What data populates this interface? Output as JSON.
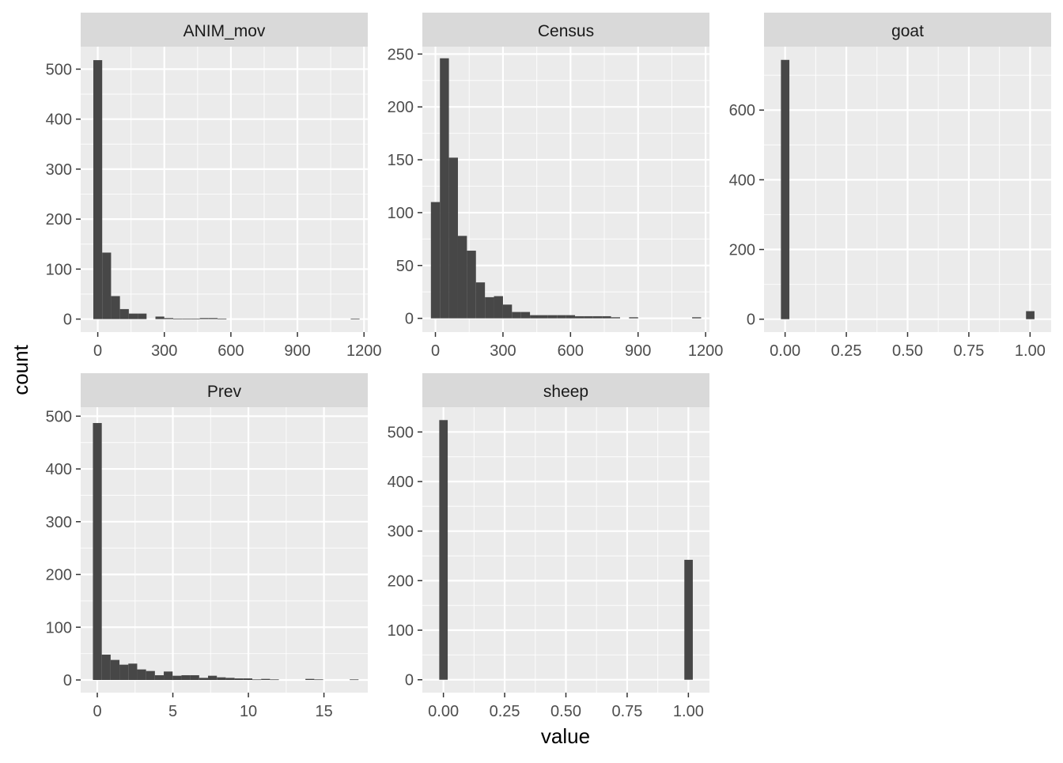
{
  "chart_data": {
    "type": "bar",
    "subtype": "faceted-histogram",
    "xlabel": "value",
    "ylabel": "count",
    "grid": true,
    "bar_color": "#474747",
    "panel_background": "#ebebeb",
    "strip_background": "#d9d9d9",
    "gridline_color": "#ffffff",
    "text_color": "#4d4d4d",
    "panels": [
      {
        "name": "ANIM_mov",
        "xlim": [
          -77,
          1217
        ],
        "ylim": [
          -26,
          545
        ],
        "xticks": [
          0,
          300,
          600,
          900,
          1200
        ],
        "xtick_labels": [
          "0",
          "300",
          "600",
          "900",
          "1200"
        ],
        "yticks": [
          0,
          100,
          200,
          300,
          400,
          500
        ],
        "ytick_labels": [
          "0",
          "100",
          "200",
          "300",
          "400",
          "500"
        ],
        "bin_start": -20,
        "bin_width": 40,
        "counts": [
          518,
          133,
          46,
          20,
          11,
          11,
          0,
          5,
          2,
          1,
          1,
          1,
          2,
          2,
          1,
          0,
          0,
          0,
          0,
          0,
          0,
          0,
          0,
          0,
          0,
          0,
          0,
          0,
          0,
          1
        ]
      },
      {
        "name": "Census",
        "xlim": [
          -58,
          1217
        ],
        "ylim": [
          -13,
          257
        ],
        "xticks": [
          0,
          300,
          600,
          900,
          1200
        ],
        "xtick_labels": [
          "0",
          "300",
          "600",
          "900",
          "1200"
        ],
        "yticks": [
          0,
          50,
          100,
          150,
          200,
          250
        ],
        "ytick_labels": [
          "0",
          "50",
          "100",
          "150",
          "200",
          "250"
        ],
        "bin_start": -20,
        "bin_width": 40,
        "counts": [
          110,
          246,
          152,
          78,
          64,
          34,
          20,
          21,
          13,
          6,
          6,
          3,
          3,
          3,
          3,
          3,
          2,
          2,
          2,
          2,
          1,
          0,
          1,
          0,
          0,
          0,
          0,
          0,
          0,
          1
        ]
      },
      {
        "name": "goat",
        "xlim": [
          -0.086,
          1.086
        ],
        "ylim": [
          -37,
          782
        ],
        "xticks": [
          0,
          0.25,
          0.5,
          0.75,
          1
        ],
        "xtick_labels": [
          "0.00",
          "0.25",
          "0.50",
          "0.75",
          "1.00"
        ],
        "yticks": [
          0,
          200,
          400,
          600
        ],
        "ytick_labels": [
          "0",
          "200",
          "400",
          "600"
        ],
        "bin_start": -0.017,
        "bin_width": 0.0345,
        "counts": [
          744,
          0,
          0,
          0,
          0,
          0,
          0,
          0,
          0,
          0,
          0,
          0,
          0,
          0,
          0,
          0,
          0,
          0,
          0,
          0,
          0,
          0,
          0,
          0,
          0,
          0,
          0,
          0,
          0,
          23
        ]
      },
      {
        "name": "Prev",
        "xlim": [
          -1.1,
          17.9
        ],
        "ylim": [
          -24,
          517
        ],
        "xticks": [
          0,
          5,
          10,
          15
        ],
        "xtick_labels": [
          "0",
          "5",
          "10",
          "15"
        ],
        "yticks": [
          0,
          100,
          200,
          300,
          400,
          500
        ],
        "ytick_labels": [
          "0",
          "100",
          "200",
          "300",
          "400",
          "500"
        ],
        "bin_start": -0.29,
        "bin_width": 0.586,
        "counts": [
          487,
          48,
          38,
          29,
          31,
          20,
          17,
          9,
          16,
          8,
          9,
          9,
          4,
          8,
          5,
          4,
          3,
          3,
          1,
          2,
          1,
          0,
          0,
          0,
          2,
          1,
          0,
          0,
          0,
          1
        ]
      },
      {
        "name": "sheep",
        "xlim": [
          -0.086,
          1.086
        ],
        "ylim": [
          -26,
          550
        ],
        "xticks": [
          0,
          0.25,
          0.5,
          0.75,
          1
        ],
        "xtick_labels": [
          "0.00",
          "0.25",
          "0.50",
          "0.75",
          "1.00"
        ],
        "yticks": [
          0,
          100,
          200,
          300,
          400,
          500
        ],
        "ytick_labels": [
          "0",
          "100",
          "200",
          "300",
          "400",
          "500"
        ],
        "bin_start": -0.017,
        "bin_width": 0.0345,
        "counts": [
          524,
          0,
          0,
          0,
          0,
          0,
          0,
          0,
          0,
          0,
          0,
          0,
          0,
          0,
          0,
          0,
          0,
          0,
          0,
          0,
          0,
          0,
          0,
          0,
          0,
          0,
          0,
          0,
          0,
          242
        ]
      }
    ]
  }
}
